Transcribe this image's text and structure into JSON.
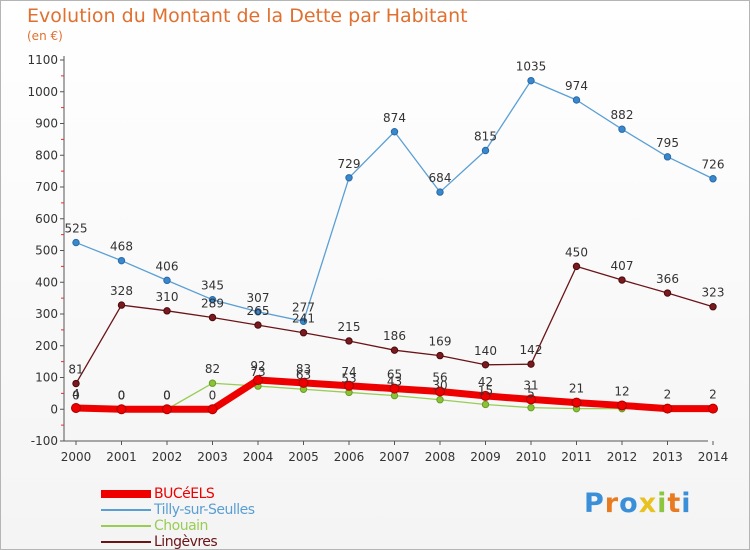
{
  "title": "Evolution du Montant de la Dette par Habitant",
  "subtitle": "(en €)",
  "logo": {
    "letters": [
      {
        "ch": "P",
        "color": "#3a8fd8"
      },
      {
        "ch": "r",
        "color": "#e87a20"
      },
      {
        "ch": "o",
        "color": "#3a8fd8"
      },
      {
        "ch": "x",
        "color": "#e8c220"
      },
      {
        "ch": "i",
        "color": "#8cc63f"
      },
      {
        "ch": "t",
        "color": "#e87a20"
      },
      {
        "ch": "i",
        "color": "#3a8fd8"
      }
    ]
  },
  "chart_data": {
    "type": "line",
    "x": [
      "2000",
      "2001",
      "2002",
      "2003",
      "2004",
      "2005",
      "2006",
      "2007",
      "2008",
      "2009",
      "2010",
      "2011",
      "2012",
      "2013",
      "2014"
    ],
    "ylim": [
      -100,
      1100
    ],
    "yticks": [
      "-100",
      "0",
      "100",
      "200",
      "300",
      "400",
      "500",
      "600",
      "700",
      "800",
      "900",
      "1000",
      "1100"
    ],
    "grid": false,
    "legend_position": "bottom-left",
    "series": [
      {
        "name": "BUCéELS",
        "color": "#ee0000",
        "values": [
          4,
          0,
          0,
          0,
          92,
          83,
          74,
          65,
          56,
          42,
          31,
          21,
          12,
          2,
          2
        ],
        "labels": [
          "4",
          "0",
          "0",
          "0",
          "92",
          "83",
          "74",
          "65",
          "56",
          "42",
          "31",
          "21",
          "12",
          "2",
          "2"
        ]
      },
      {
        "name": "Tilly-sur-Seulles",
        "color": "#5a9fd4",
        "values": [
          525,
          468,
          406,
          345,
          307,
          277,
          729,
          874,
          684,
          815,
          1035,
          974,
          882,
          795,
          726
        ],
        "labels": [
          "525",
          "468",
          "406",
          "345",
          "307",
          "277",
          "729",
          "874",
          "684",
          "815",
          "1035",
          "974",
          "882",
          "795",
          "726"
        ]
      },
      {
        "name": "Chouain",
        "color": "#99cc55",
        "values": [
          0,
          0,
          0,
          82,
          73,
          63,
          53,
          43,
          30,
          15,
          5,
          2,
          2,
          2,
          2
        ],
        "labels": [
          "0",
          "0",
          "0",
          "82",
          "73",
          "63",
          "53",
          "43",
          "30",
          "15",
          "5",
          "",
          "",
          "",
          ""
        ]
      },
      {
        "name": "Lingèvres",
        "color": "#6b1418",
        "values": [
          81,
          328,
          310,
          289,
          265,
          241,
          215,
          186,
          169,
          140,
          142,
          450,
          407,
          366,
          323
        ],
        "labels": [
          "81",
          "328",
          "310",
          "289",
          "265",
          "241",
          "215",
          "186",
          "169",
          "140",
          "142",
          "450",
          "407",
          "366",
          "323"
        ]
      }
    ]
  }
}
